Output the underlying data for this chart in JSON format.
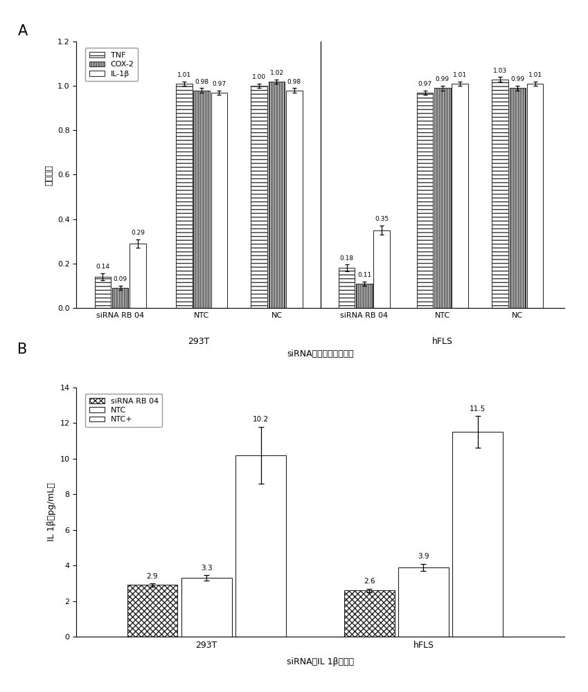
{
  "panel_A": {
    "title": "siRNA降低炎症因子表达",
    "ylabel": "表达水平",
    "ylim": [
      0.0,
      1.2
    ],
    "yticks": [
      0.0,
      0.2,
      0.4,
      0.6,
      0.8,
      1.0,
      1.2
    ],
    "group_keys": [
      "293T_siRNA",
      "293T_NTC",
      "293T_NC",
      "hFLS_siRNA",
      "hFLS_NTC",
      "hFLS_NC"
    ],
    "group_labels": [
      "siRNA RB 04",
      "NTC",
      "NC",
      "siRNA RB 04",
      "NTC",
      "NC"
    ],
    "series_labels": [
      "TNF",
      "COX-2",
      "IL-1β"
    ],
    "values": {
      "293T_siRNA": [
        0.14,
        0.09,
        0.29
      ],
      "293T_NTC": [
        1.01,
        0.98,
        0.97
      ],
      "293T_NC": [
        1.0,
        1.02,
        0.98
      ],
      "hFLS_siRNA": [
        0.18,
        0.11,
        0.35
      ],
      "hFLS_NTC": [
        0.97,
        0.99,
        1.01
      ],
      "hFLS_NC": [
        1.03,
        0.99,
        1.01
      ]
    },
    "errors": {
      "293T_siRNA": [
        0.015,
        0.01,
        0.02
      ],
      "293T_NTC": [
        0.01,
        0.01,
        0.01
      ],
      "293T_NC": [
        0.01,
        0.01,
        0.01
      ],
      "hFLS_siRNA": [
        0.015,
        0.01,
        0.02
      ],
      "hFLS_NTC": [
        0.01,
        0.01,
        0.01
      ],
      "hFLS_NC": [
        0.01,
        0.01,
        0.01
      ]
    },
    "bar_labels": {
      "293T_siRNA": [
        "0.14",
        "0.09",
        "0.29"
      ],
      "293T_NTC": [
        "1.01",
        "0.98",
        "0.97"
      ],
      "293T_NC": [
        "1.00",
        "1.02",
        "0.98"
      ],
      "hFLS_siRNA": [
        "0.18",
        "0.11",
        "0.35"
      ],
      "hFLS_NTC": [
        "0.97",
        "0.99",
        "1.01"
      ],
      "hFLS_NC": [
        "1.03",
        "0.99",
        "1.01"
      ]
    },
    "centers": [
      0.55,
      1.85,
      3.05,
      4.45,
      5.7,
      6.9
    ],
    "bar_width": 0.28,
    "xlim": [
      -0.15,
      7.65
    ],
    "divider_x": 3.75,
    "cell_293T_x": 1.8,
    "cell_hFLS_x": 5.7,
    "cell_y": -0.13
  },
  "panel_B": {
    "title": "siRNA对IL 1β的影响",
    "ylabel": "IL 1β（pg/mL）",
    "ylim": [
      0,
      14
    ],
    "yticks": [
      0,
      2,
      4,
      6,
      8,
      10,
      12,
      14
    ],
    "groups": [
      "293T",
      "hFLS"
    ],
    "group_centers": [
      1.0,
      3.0
    ],
    "bar_width": 0.5,
    "xlim": [
      -0.2,
      4.3
    ],
    "series_labels": [
      "siRNA RB 04",
      "NTC",
      "NTC+"
    ],
    "values": {
      "293T": [
        2.9,
        3.3,
        10.2
      ],
      "hFLS": [
        2.6,
        3.9,
        11.5
      ]
    },
    "errors": {
      "293T": [
        0.1,
        0.15,
        1.6
      ],
      "hFLS": [
        0.1,
        0.2,
        0.9
      ]
    },
    "bar_labels": {
      "293T": [
        "2.9",
        "3.3",
        "10.2"
      ],
      "hFLS": [
        "2.6",
        "3.9",
        "11.5"
      ]
    }
  },
  "bar_edge_color": "#222222"
}
